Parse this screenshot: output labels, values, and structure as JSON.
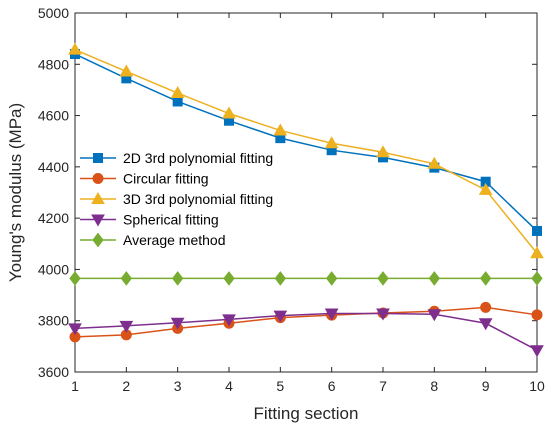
{
  "chart_data": {
    "type": "line",
    "title": "",
    "xlabel": "Fitting section",
    "ylabel": "Young's modulus (MPa)",
    "xlim": [
      1,
      10
    ],
    "ylim": [
      3600,
      5000
    ],
    "xticks": [
      1,
      2,
      3,
      4,
      5,
      6,
      7,
      8,
      9,
      10
    ],
    "yticks": [
      3600,
      3800,
      4000,
      4200,
      4400,
      4600,
      4800,
      5000
    ],
    "grid": false,
    "legend_position": "middle-left",
    "x": [
      1,
      2,
      3,
      4,
      5,
      6,
      7,
      8,
      9,
      10
    ],
    "series": [
      {
        "name": "2D 3rd polynomial fitting",
        "color": "#0072BD",
        "marker": "square",
        "values": [
          4840,
          4745,
          4655,
          4580,
          4512,
          4465,
          4437,
          4397,
          4342,
          4150
        ]
      },
      {
        "name": "Circular fitting",
        "color": "#D95319",
        "marker": "circle",
        "values": [
          3737,
          3745,
          3770,
          3790,
          3812,
          3822,
          3830,
          3837,
          3852,
          3823
        ]
      },
      {
        "name": "3D 3rd polynomial fitting",
        "color": "#EDB120",
        "marker": "triangle-up",
        "values": [
          4857,
          4772,
          4688,
          4608,
          4542,
          4492,
          4457,
          4412,
          4310,
          4063
        ]
      },
      {
        "name": "Spherical fitting",
        "color": "#7E2F8E",
        "marker": "triangle-down",
        "values": [
          3770,
          3780,
          3792,
          3805,
          3820,
          3828,
          3828,
          3825,
          3790,
          3685
        ]
      },
      {
        "name": "Average method",
        "color": "#77AC30",
        "marker": "diamond",
        "values": [
          3965,
          3965,
          3965,
          3965,
          3965,
          3965,
          3965,
          3965,
          3965,
          3965
        ]
      }
    ]
  }
}
